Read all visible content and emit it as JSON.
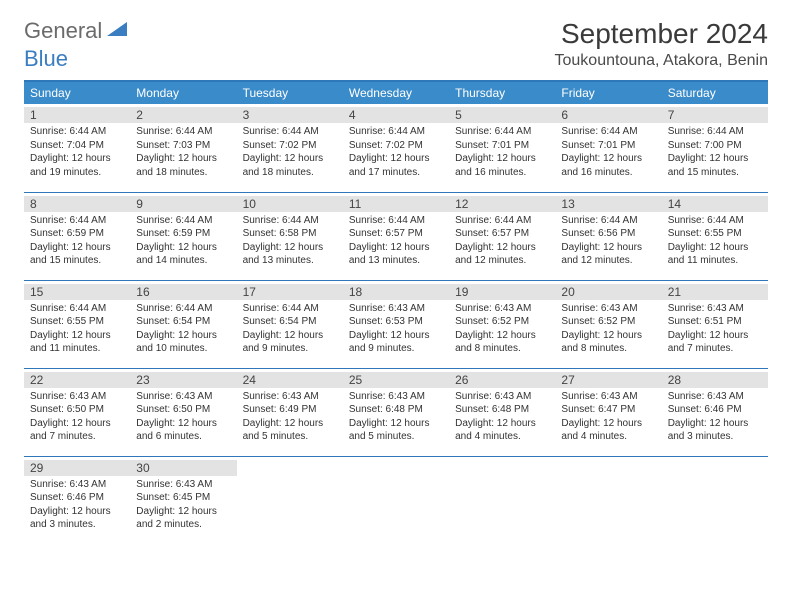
{
  "logo": {
    "general": "General",
    "blue": "Blue"
  },
  "title": "September 2024",
  "location": "Toukountouna, Atakora, Benin",
  "colors": {
    "header_bg": "#3a8bc9",
    "divider": "#2e77b8",
    "daynum_bg": "#e3e3e3",
    "text": "#333333",
    "logo_gray": "#6b6b6b",
    "logo_blue": "#3a7ec1"
  },
  "day_headers": [
    "Sunday",
    "Monday",
    "Tuesday",
    "Wednesday",
    "Thursday",
    "Friday",
    "Saturday"
  ],
  "days": [
    {
      "n": "1",
      "sr": "Sunrise: 6:44 AM",
      "ss": "Sunset: 7:04 PM",
      "d1": "Daylight: 12 hours",
      "d2": "and 19 minutes."
    },
    {
      "n": "2",
      "sr": "Sunrise: 6:44 AM",
      "ss": "Sunset: 7:03 PM",
      "d1": "Daylight: 12 hours",
      "d2": "and 18 minutes."
    },
    {
      "n": "3",
      "sr": "Sunrise: 6:44 AM",
      "ss": "Sunset: 7:02 PM",
      "d1": "Daylight: 12 hours",
      "d2": "and 18 minutes."
    },
    {
      "n": "4",
      "sr": "Sunrise: 6:44 AM",
      "ss": "Sunset: 7:02 PM",
      "d1": "Daylight: 12 hours",
      "d2": "and 17 minutes."
    },
    {
      "n": "5",
      "sr": "Sunrise: 6:44 AM",
      "ss": "Sunset: 7:01 PM",
      "d1": "Daylight: 12 hours",
      "d2": "and 16 minutes."
    },
    {
      "n": "6",
      "sr": "Sunrise: 6:44 AM",
      "ss": "Sunset: 7:01 PM",
      "d1": "Daylight: 12 hours",
      "d2": "and 16 minutes."
    },
    {
      "n": "7",
      "sr": "Sunrise: 6:44 AM",
      "ss": "Sunset: 7:00 PM",
      "d1": "Daylight: 12 hours",
      "d2": "and 15 minutes."
    },
    {
      "n": "8",
      "sr": "Sunrise: 6:44 AM",
      "ss": "Sunset: 6:59 PM",
      "d1": "Daylight: 12 hours",
      "d2": "and 15 minutes."
    },
    {
      "n": "9",
      "sr": "Sunrise: 6:44 AM",
      "ss": "Sunset: 6:59 PM",
      "d1": "Daylight: 12 hours",
      "d2": "and 14 minutes."
    },
    {
      "n": "10",
      "sr": "Sunrise: 6:44 AM",
      "ss": "Sunset: 6:58 PM",
      "d1": "Daylight: 12 hours",
      "d2": "and 13 minutes."
    },
    {
      "n": "11",
      "sr": "Sunrise: 6:44 AM",
      "ss": "Sunset: 6:57 PM",
      "d1": "Daylight: 12 hours",
      "d2": "and 13 minutes."
    },
    {
      "n": "12",
      "sr": "Sunrise: 6:44 AM",
      "ss": "Sunset: 6:57 PM",
      "d1": "Daylight: 12 hours",
      "d2": "and 12 minutes."
    },
    {
      "n": "13",
      "sr": "Sunrise: 6:44 AM",
      "ss": "Sunset: 6:56 PM",
      "d1": "Daylight: 12 hours",
      "d2": "and 12 minutes."
    },
    {
      "n": "14",
      "sr": "Sunrise: 6:44 AM",
      "ss": "Sunset: 6:55 PM",
      "d1": "Daylight: 12 hours",
      "d2": "and 11 minutes."
    },
    {
      "n": "15",
      "sr": "Sunrise: 6:44 AM",
      "ss": "Sunset: 6:55 PM",
      "d1": "Daylight: 12 hours",
      "d2": "and 11 minutes."
    },
    {
      "n": "16",
      "sr": "Sunrise: 6:44 AM",
      "ss": "Sunset: 6:54 PM",
      "d1": "Daylight: 12 hours",
      "d2": "and 10 minutes."
    },
    {
      "n": "17",
      "sr": "Sunrise: 6:44 AM",
      "ss": "Sunset: 6:54 PM",
      "d1": "Daylight: 12 hours",
      "d2": "and 9 minutes."
    },
    {
      "n": "18",
      "sr": "Sunrise: 6:43 AM",
      "ss": "Sunset: 6:53 PM",
      "d1": "Daylight: 12 hours",
      "d2": "and 9 minutes."
    },
    {
      "n": "19",
      "sr": "Sunrise: 6:43 AM",
      "ss": "Sunset: 6:52 PM",
      "d1": "Daylight: 12 hours",
      "d2": "and 8 minutes."
    },
    {
      "n": "20",
      "sr": "Sunrise: 6:43 AM",
      "ss": "Sunset: 6:52 PM",
      "d1": "Daylight: 12 hours",
      "d2": "and 8 minutes."
    },
    {
      "n": "21",
      "sr": "Sunrise: 6:43 AM",
      "ss": "Sunset: 6:51 PM",
      "d1": "Daylight: 12 hours",
      "d2": "and 7 minutes."
    },
    {
      "n": "22",
      "sr": "Sunrise: 6:43 AM",
      "ss": "Sunset: 6:50 PM",
      "d1": "Daylight: 12 hours",
      "d2": "and 7 minutes."
    },
    {
      "n": "23",
      "sr": "Sunrise: 6:43 AM",
      "ss": "Sunset: 6:50 PM",
      "d1": "Daylight: 12 hours",
      "d2": "and 6 minutes."
    },
    {
      "n": "24",
      "sr": "Sunrise: 6:43 AM",
      "ss": "Sunset: 6:49 PM",
      "d1": "Daylight: 12 hours",
      "d2": "and 5 minutes."
    },
    {
      "n": "25",
      "sr": "Sunrise: 6:43 AM",
      "ss": "Sunset: 6:48 PM",
      "d1": "Daylight: 12 hours",
      "d2": "and 5 minutes."
    },
    {
      "n": "26",
      "sr": "Sunrise: 6:43 AM",
      "ss": "Sunset: 6:48 PM",
      "d1": "Daylight: 12 hours",
      "d2": "and 4 minutes."
    },
    {
      "n": "27",
      "sr": "Sunrise: 6:43 AM",
      "ss": "Sunset: 6:47 PM",
      "d1": "Daylight: 12 hours",
      "d2": "and 4 minutes."
    },
    {
      "n": "28",
      "sr": "Sunrise: 6:43 AM",
      "ss": "Sunset: 6:46 PM",
      "d1": "Daylight: 12 hours",
      "d2": "and 3 minutes."
    },
    {
      "n": "29",
      "sr": "Sunrise: 6:43 AM",
      "ss": "Sunset: 6:46 PM",
      "d1": "Daylight: 12 hours",
      "d2": "and 3 minutes."
    },
    {
      "n": "30",
      "sr": "Sunrise: 6:43 AM",
      "ss": "Sunset: 6:45 PM",
      "d1": "Daylight: 12 hours",
      "d2": "and 2 minutes."
    }
  ]
}
